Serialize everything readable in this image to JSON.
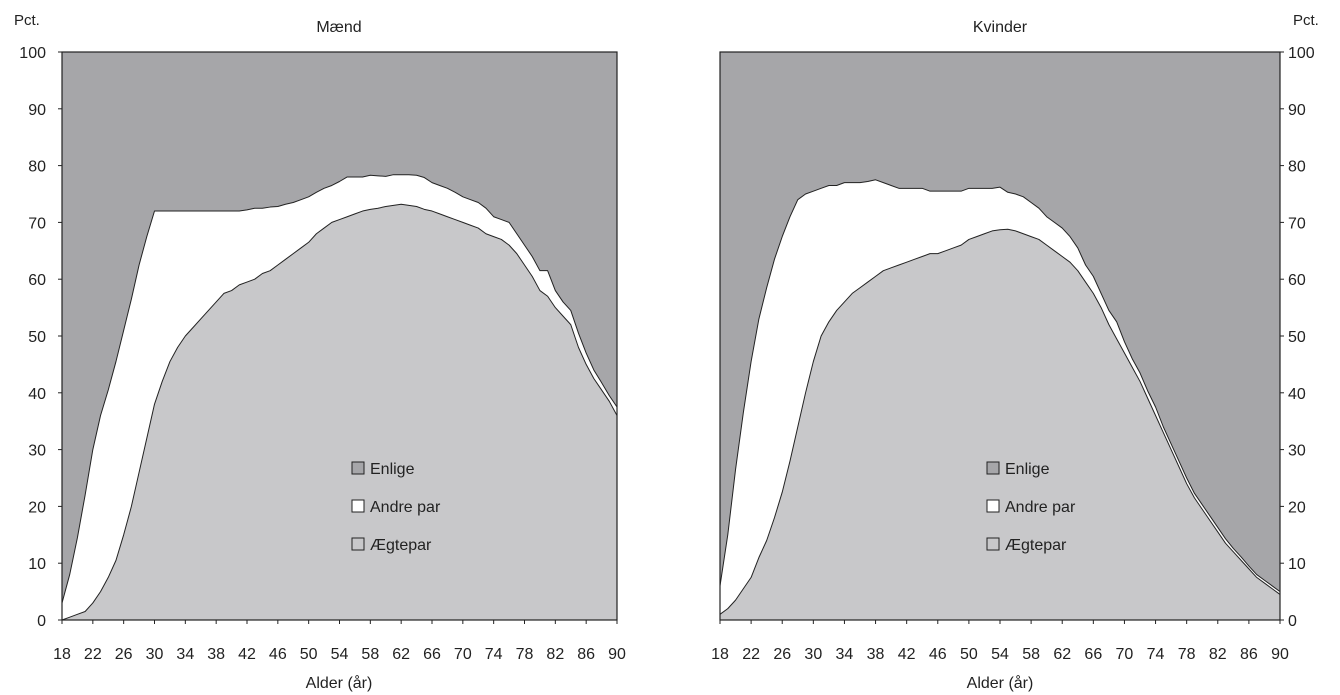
{
  "colors": {
    "enlige": "#a6a6a9",
    "andre_par": "#ffffff",
    "aegtepar": "#c8c8ca",
    "axis": "#222222"
  },
  "legend": [
    {
      "label": "Enlige",
      "color_key": "enlige"
    },
    {
      "label": "Andre par",
      "color_key": "andre_par"
    },
    {
      "label": "Ægtepar",
      "color_key": "aegtepar"
    }
  ],
  "chart_data": [
    {
      "type": "area",
      "stacked": true,
      "title": "Mænd",
      "xlabel": "Alder (år)",
      "ylabel": "Pct.",
      "ylim": [
        0,
        100
      ],
      "xlim": [
        18,
        90
      ],
      "y_ticks": [
        "0",
        "10",
        "20",
        "30",
        "40",
        "50",
        "60",
        "70",
        "80",
        "90",
        "100"
      ],
      "x_ticks": [
        "18",
        "22",
        "26",
        "30",
        "34",
        "38",
        "42",
        "46",
        "50",
        "54",
        "58",
        "62",
        "66",
        "70",
        "74",
        "78",
        "82",
        "86",
        "90"
      ],
      "y_axis_side": "left",
      "legend_position": "center-bottom",
      "x": [
        18,
        19,
        20,
        21,
        22,
        23,
        24,
        25,
        26,
        27,
        28,
        29,
        30,
        31,
        32,
        33,
        34,
        35,
        36,
        37,
        38,
        39,
        40,
        41,
        42,
        43,
        44,
        45,
        46,
        47,
        48,
        49,
        50,
        51,
        52,
        53,
        54,
        55,
        56,
        57,
        58,
        59,
        60,
        61,
        62,
        63,
        64,
        65,
        66,
        67,
        68,
        69,
        70,
        71,
        72,
        73,
        74,
        75,
        76,
        77,
        78,
        79,
        80,
        81,
        82,
        83,
        84,
        85,
        86,
        87,
        88,
        89,
        90
      ],
      "series": [
        {
          "name": "Ægtepar",
          "color_key": "aegtepar",
          "values": [
            0,
            0.5,
            1,
            1.5,
            3,
            5,
            7.5,
            10.5,
            15,
            20,
            26,
            32,
            38,
            42,
            45.5,
            48,
            50,
            51.5,
            53,
            54.5,
            56,
            57.5,
            58,
            59,
            59.5,
            60,
            61,
            61.5,
            62.5,
            63.5,
            64.5,
            65.5,
            66.5,
            68,
            69,
            70,
            70.5,
            71,
            71.5,
            72,
            72.3,
            72.5,
            72.8,
            73,
            73.2,
            73,
            72.8,
            72.3,
            72,
            71.5,
            71,
            70.5,
            70,
            69.5,
            69,
            68,
            67.5,
            67,
            66,
            64.5,
            62.5,
            60.5,
            58,
            57,
            55,
            53.5,
            52,
            48,
            45,
            42.5,
            40.5,
            38.5,
            36
          ]
        },
        {
          "name": "Andre par",
          "color_key": "andre_par",
          "values": [
            3,
            7.5,
            13.5,
            20.5,
            27,
            31,
            33,
            35,
            36,
            36.5,
            36.5,
            35.5,
            34,
            30,
            26.5,
            24,
            22,
            20.5,
            19,
            17.5,
            16,
            14.5,
            14,
            13,
            12.7,
            12.5,
            11.5,
            11.2,
            10.3,
            9.7,
            9,
            8.5,
            8,
            7.3,
            7,
            6.5,
            6.7,
            7,
            6.5,
            6,
            6,
            5.7,
            5.3,
            5.4,
            5.2,
            5.4,
            5.5,
            5.6,
            5,
            5,
            5,
            4.8,
            4.5,
            4.5,
            4.5,
            4.5,
            3.5,
            3.5,
            4,
            3.5,
            3.5,
            3.5,
            3.5,
            4.5,
            3,
            2.5,
            2.5,
            2.5,
            2,
            1.5,
            1.3,
            1,
            1.5
          ]
        }
      ]
    },
    {
      "type": "area",
      "stacked": true,
      "title": "Kvinder",
      "xlabel": "Alder (år)",
      "ylabel": "Pct.",
      "ylim": [
        0,
        100
      ],
      "xlim": [
        18,
        90
      ],
      "y_ticks": [
        "0",
        "10",
        "20",
        "30",
        "40",
        "50",
        "60",
        "70",
        "80",
        "90",
        "100"
      ],
      "x_ticks": [
        "18",
        "22",
        "26",
        "30",
        "34",
        "38",
        "42",
        "46",
        "50",
        "54",
        "58",
        "62",
        "66",
        "70",
        "74",
        "78",
        "82",
        "86",
        "90"
      ],
      "y_axis_side": "right",
      "legend_position": "center-bottom",
      "x": [
        18,
        19,
        20,
        21,
        22,
        23,
        24,
        25,
        26,
        27,
        28,
        29,
        30,
        31,
        32,
        33,
        34,
        35,
        36,
        37,
        38,
        39,
        40,
        41,
        42,
        43,
        44,
        45,
        46,
        47,
        48,
        49,
        50,
        51,
        52,
        53,
        54,
        55,
        56,
        57,
        58,
        59,
        60,
        61,
        62,
        63,
        64,
        65,
        66,
        67,
        68,
        69,
        70,
        71,
        72,
        73,
        74,
        75,
        76,
        77,
        78,
        79,
        80,
        81,
        82,
        83,
        84,
        85,
        86,
        87,
        88,
        89,
        90
      ],
      "series": [
        {
          "name": "Ægtepar",
          "color_key": "aegtepar",
          "values": [
            1,
            2,
            3.5,
            5.5,
            7.5,
            11,
            14,
            18,
            22.5,
            28,
            34,
            40,
            45.5,
            50,
            52.5,
            54.5,
            56,
            57.5,
            58.5,
            59.5,
            60.5,
            61.5,
            62,
            62.5,
            63,
            63.5,
            64,
            64.5,
            64.5,
            65,
            65.5,
            66,
            67,
            67.5,
            68,
            68.5,
            68.7,
            68.8,
            68.5,
            68,
            67.5,
            67,
            66,
            65,
            64,
            63,
            61.5,
            59.5,
            57.5,
            55,
            52,
            49.5,
            47,
            44.5,
            42,
            39,
            36,
            33,
            30,
            27,
            24,
            21.5,
            19.5,
            17.5,
            15.5,
            13.5,
            12,
            10.5,
            9,
            7.5,
            6.5,
            5.5,
            4.5
          ]
        },
        {
          "name": "Andre par",
          "color_key": "andre_par",
          "values": [
            5,
            13,
            23,
            31,
            38,
            42,
            44.5,
            45.5,
            45,
            43,
            40,
            35,
            30,
            26,
            24,
            22,
            21,
            19.5,
            18.5,
            17.7,
            17,
            15.5,
            14.5,
            13.5,
            13,
            12.5,
            12,
            11,
            11,
            10.5,
            10,
            9.5,
            9,
            8.5,
            8,
            7.5,
            7.5,
            6.5,
            6.5,
            6.5,
            6,
            5.5,
            5,
            5,
            5,
            4.5,
            4,
            3,
            3,
            2.5,
            2.5,
            3,
            2,
            1.5,
            1.5,
            1.3,
            1.5,
            1,
            1,
            1,
            1,
            0.8,
            0.8,
            0.8,
            0.8,
            0.8,
            0.6,
            0.6,
            0.5,
            0.5,
            0.5,
            0.5,
            0.5
          ]
        }
      ]
    }
  ]
}
